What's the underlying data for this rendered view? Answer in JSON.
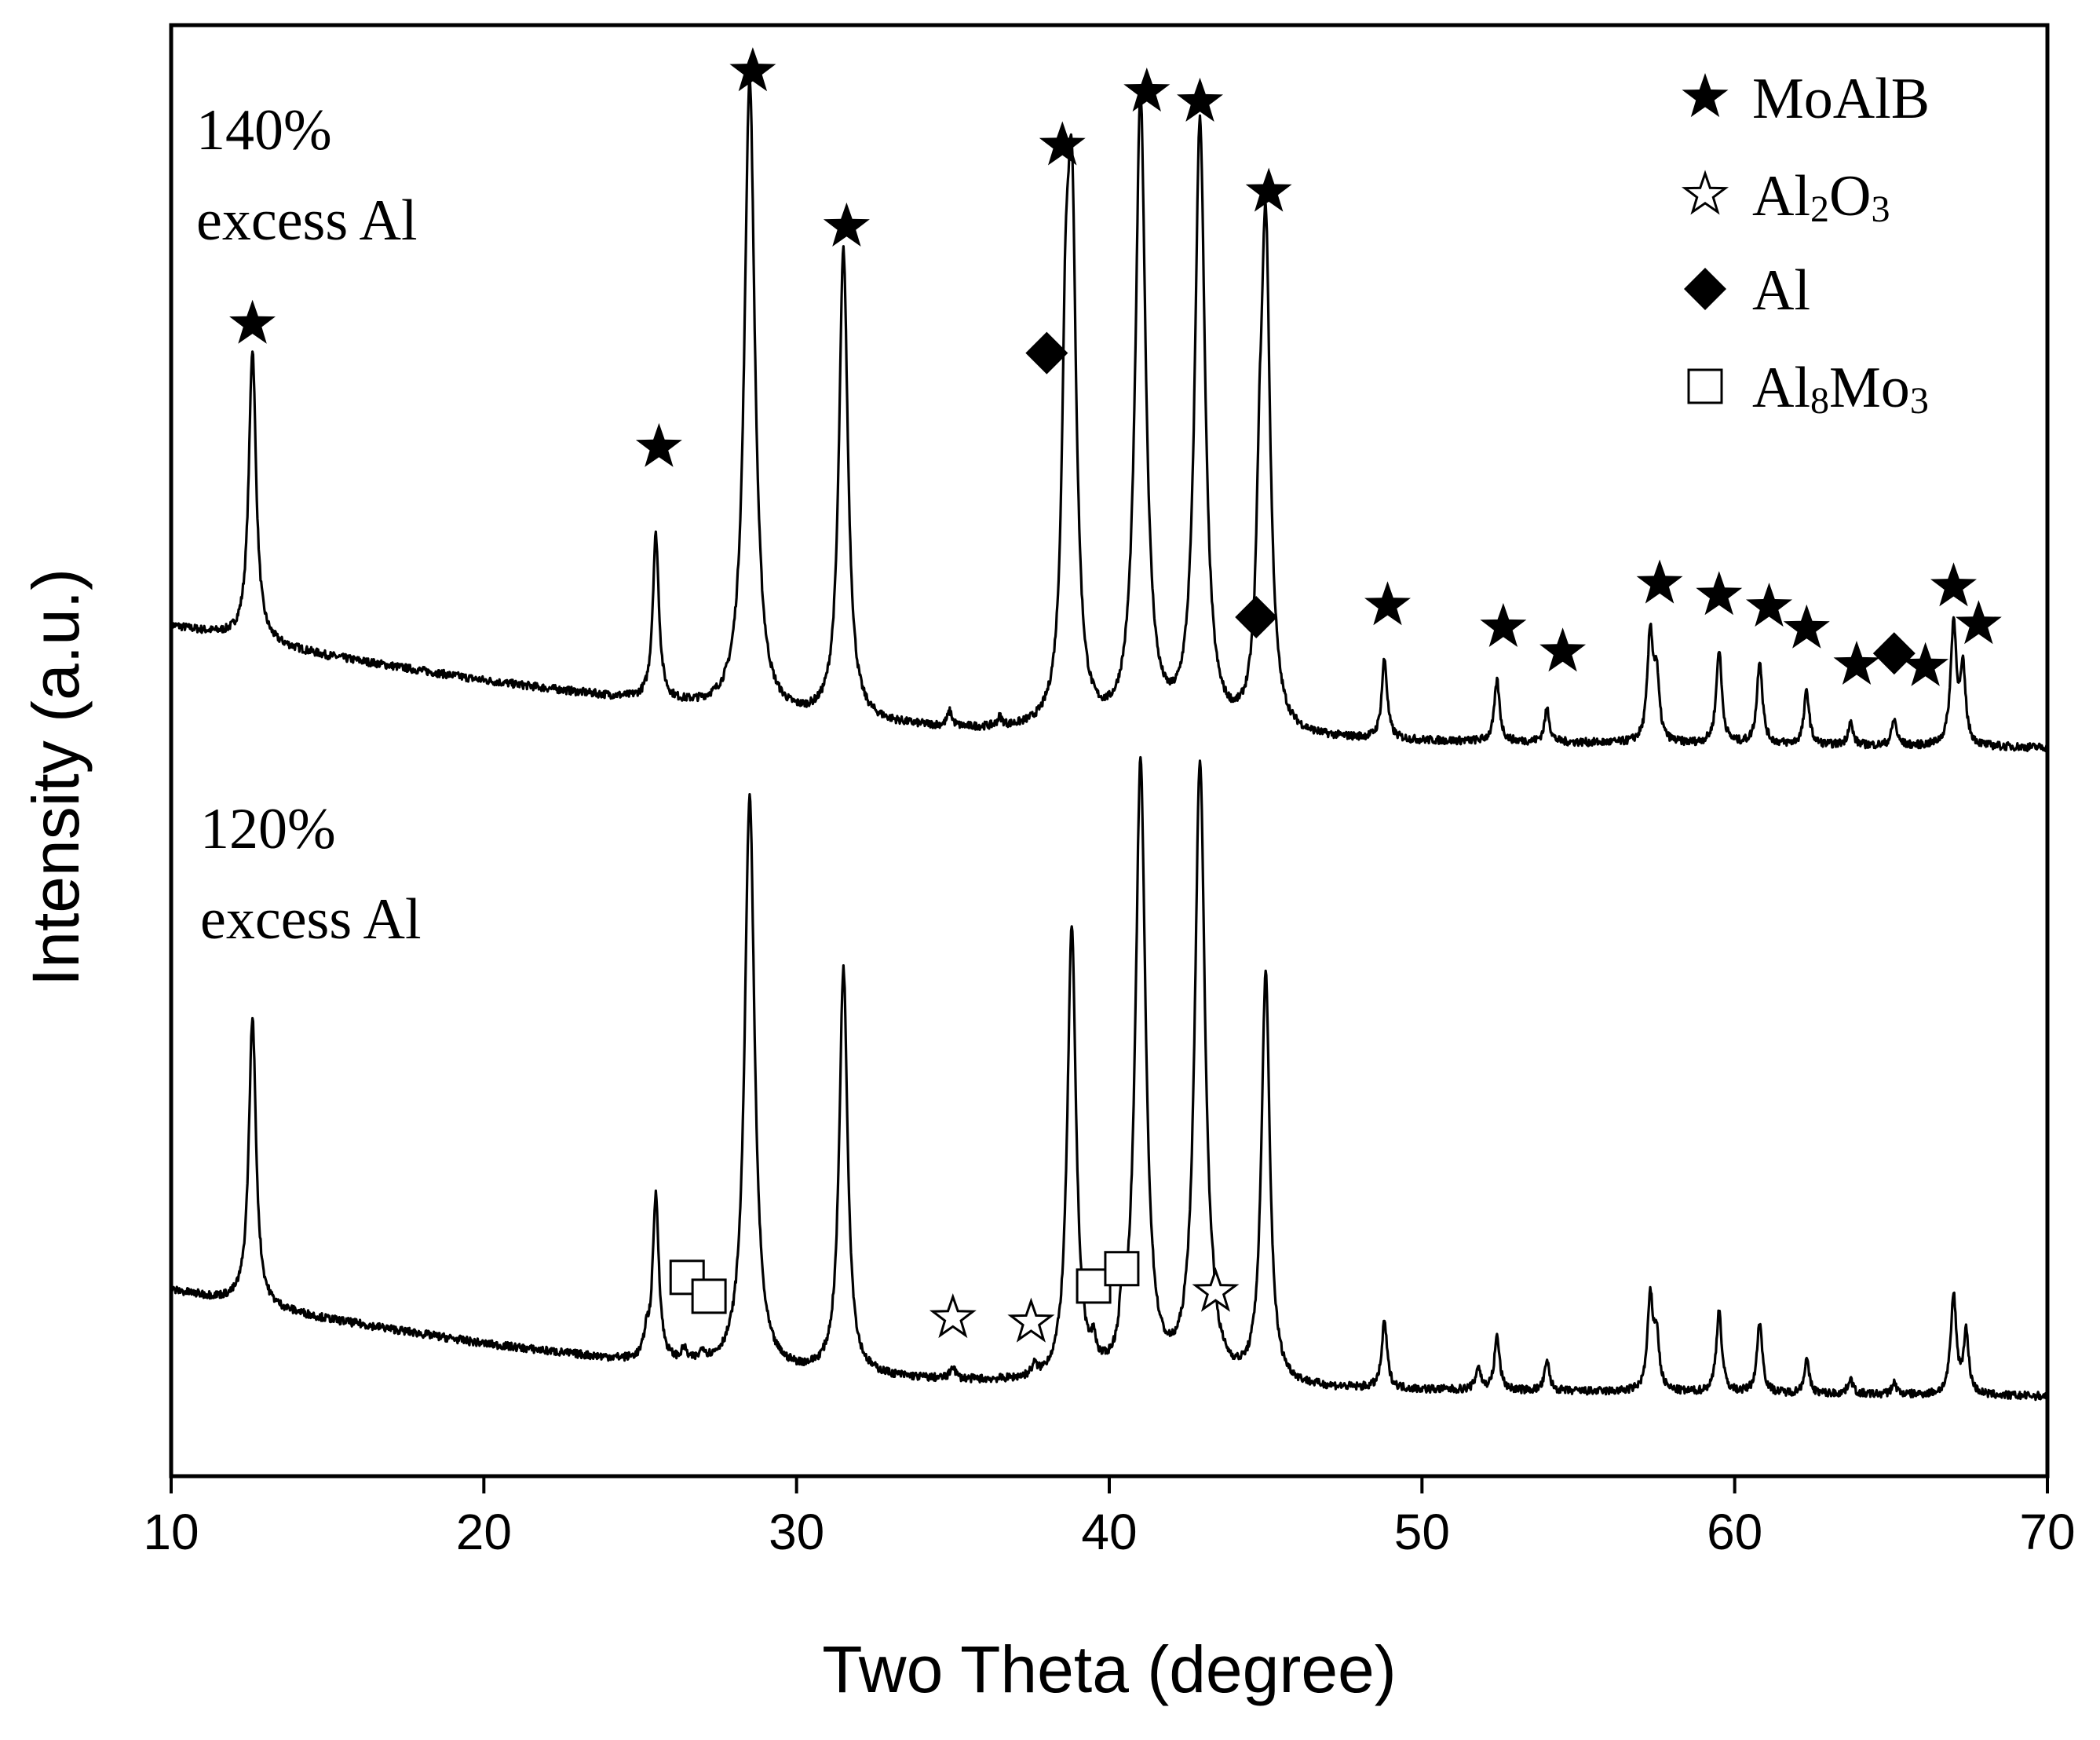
{
  "chart_data": {
    "type": "line",
    "title": "",
    "xlabel": "Two Theta (degree)",
    "ylabel": "Intensity (a.u.)",
    "xlim": [
      10,
      70
    ],
    "ylim": [
      0,
      100
    ],
    "x_ticks": [
      "10",
      "20",
      "30",
      "40",
      "50",
      "60",
      "70"
    ],
    "grid": false,
    "legend_position": "top-right",
    "legend": [
      {
        "symbol": "filled-star",
        "parts": [
          [
            "MoAlB",
            false
          ]
        ]
      },
      {
        "symbol": "open-star",
        "parts": [
          [
            "Al",
            false
          ],
          [
            "2",
            true
          ],
          [
            "O",
            false
          ],
          [
            "3",
            true
          ]
        ]
      },
      {
        "symbol": "filled-diamond",
        "parts": [
          [
            "Al",
            false
          ]
        ]
      },
      {
        "symbol": "open-square",
        "parts": [
          [
            "Al",
            false
          ],
          [
            "8",
            true
          ],
          [
            "Mo",
            false
          ],
          [
            "3",
            true
          ]
        ]
      }
    ],
    "series": [
      {
        "name": "140% excess Al",
        "label_lines": [
          "140%",
          "excess Al"
        ],
        "baseline": {
          "x": [
            10,
            12,
            15,
            20,
            25,
            30,
            35,
            40,
            45,
            50,
            55,
            60,
            65,
            70
          ],
          "y": [
            58.6,
            57.8,
            56.5,
            54.8,
            53.4,
            52.1,
            51.4,
            51.0,
            50.8,
            50.6,
            50.5,
            50.4,
            50.3,
            50.2
          ]
        },
        "peaks": [
          {
            "x": 12.6,
            "h": 20.1
          },
          {
            "x": 25.5,
            "h": 11.4
          },
          {
            "x": 28.5,
            "h": 43.8
          },
          {
            "x": 31.5,
            "h": 32.4
          },
          {
            "x": 38.6,
            "h": 19.0
          },
          {
            "x": 38.8,
            "h": 34.5
          },
          {
            "x": 41.0,
            "h": 43.5
          },
          {
            "x": 42.9,
            "h": 42.0
          },
          {
            "x": 44.8,
            "h": 8.5
          },
          {
            "x": 45.0,
            "h": 34.4
          },
          {
            "x": 48.8,
            "h": 5.5
          },
          {
            "x": 52.4,
            "h": 4.2
          },
          {
            "x": 54.0,
            "h": 2.3
          },
          {
            "x": 57.3,
            "h": 7.4
          },
          {
            "x": 57.5,
            "h": 4.2
          },
          {
            "x": 59.5,
            "h": 6.5
          },
          {
            "x": 60.8,
            "h": 5.8
          },
          {
            "x": 62.3,
            "h": 3.7
          },
          {
            "x": 63.7,
            "h": 1.6
          },
          {
            "x": 65.1,
            "h": 1.8
          },
          {
            "x": 67.0,
            "h": 8.4
          },
          {
            "x": 67.3,
            "h": 5.0
          },
          {
            "x": 34.9,
            "h": 1.0
          },
          {
            "x": 36.5,
            "h": 0.6
          }
        ],
        "markers": [
          {
            "x": 12.6,
            "y": 79.4,
            "symbol": "filled-star"
          },
          {
            "x": 25.6,
            "y": 70.9,
            "symbol": "filled-star"
          },
          {
            "x": 28.6,
            "y": 96.8,
            "symbol": "filled-star"
          },
          {
            "x": 31.6,
            "y": 86.1,
            "symbol": "filled-star"
          },
          {
            "x": 38.0,
            "y": 77.4,
            "symbol": "filled-diamond"
          },
          {
            "x": 38.5,
            "y": 91.7,
            "symbol": "filled-star"
          },
          {
            "x": 41.2,
            "y": 95.4,
            "symbol": "filled-star"
          },
          {
            "x": 42.9,
            "y": 94.7,
            "symbol": "filled-star"
          },
          {
            "x": 44.7,
            "y": 59.2,
            "symbol": "filled-diamond"
          },
          {
            "x": 45.1,
            "y": 88.5,
            "symbol": "filled-star"
          },
          {
            "x": 48.9,
            "y": 60.0,
            "symbol": "filled-star"
          },
          {
            "x": 52.6,
            "y": 58.5,
            "symbol": "filled-star"
          },
          {
            "x": 54.5,
            "y": 56.8,
            "symbol": "filled-star"
          },
          {
            "x": 57.6,
            "y": 61.5,
            "symbol": "filled-star"
          },
          {
            "x": 59.5,
            "y": 60.7,
            "symbol": "filled-star"
          },
          {
            "x": 61.1,
            "y": 59.9,
            "symbol": "filled-star"
          },
          {
            "x": 62.3,
            "y": 58.4,
            "symbol": "filled-star"
          },
          {
            "x": 63.9,
            "y": 55.9,
            "symbol": "filled-star"
          },
          {
            "x": 65.1,
            "y": 56.7,
            "symbol": "filled-diamond"
          },
          {
            "x": 66.1,
            "y": 55.8,
            "symbol": "filled-star"
          },
          {
            "x": 67.0,
            "y": 61.3,
            "symbol": "filled-star"
          },
          {
            "x": 67.8,
            "y": 58.7,
            "symbol": "filled-star"
          }
        ]
      },
      {
        "name": "120% excess Al",
        "label_lines": [
          "120%",
          "excess Al"
        ],
        "baseline": {
          "x": [
            10,
            12,
            15,
            20,
            25,
            30,
            35,
            40,
            45,
            50,
            55,
            60,
            65,
            70
          ],
          "y": [
            12.8,
            12.0,
            10.8,
            9.1,
            7.8,
            7.0,
            6.5,
            6.2,
            6.0,
            5.9,
            5.8,
            5.7,
            5.6,
            5.5
          ]
        },
        "peaks": [
          {
            "x": 12.6,
            "h": 19.8
          },
          {
            "x": 25.2,
            "h": 1.5
          },
          {
            "x": 25.5,
            "h": 11.4
          },
          {
            "x": 26.4,
            "h": 0.8
          },
          {
            "x": 27.0,
            "h": 0.7
          },
          {
            "x": 28.5,
            "h": 39.6
          },
          {
            "x": 31.5,
            "h": 28.0
          },
          {
            "x": 35.0,
            "h": 0.9
          },
          {
            "x": 37.6,
            "h": 0.7
          },
          {
            "x": 38.8,
            "h": 31.0
          },
          {
            "x": 39.5,
            "h": 1.5
          },
          {
            "x": 40.4,
            "h": 2.8
          },
          {
            "x": 41.0,
            "h": 42.4
          },
          {
            "x": 42.9,
            "h": 42.6
          },
          {
            "x": 43.3,
            "h": 1.0
          },
          {
            "x": 45.0,
            "h": 28.2
          },
          {
            "x": 48.8,
            "h": 4.6
          },
          {
            "x": 51.8,
            "h": 1.6
          },
          {
            "x": 52.4,
            "h": 3.7
          },
          {
            "x": 54.0,
            "h": 2.0
          },
          {
            "x": 57.3,
            "h": 6.3
          },
          {
            "x": 57.5,
            "h": 3.6
          },
          {
            "x": 59.5,
            "h": 5.7
          },
          {
            "x": 60.8,
            "h": 4.9
          },
          {
            "x": 62.3,
            "h": 2.3
          },
          {
            "x": 63.7,
            "h": 1.1
          },
          {
            "x": 65.1,
            "h": 0.8
          },
          {
            "x": 67.0,
            "h": 6.8
          },
          {
            "x": 67.4,
            "h": 4.2
          }
        ],
        "markers": [
          {
            "x": 26.5,
            "y": 13.7,
            "symbol": "open-square"
          },
          {
            "x": 27.2,
            "y": 12.4,
            "symbol": "open-square"
          },
          {
            "x": 35.0,
            "y": 10.9,
            "symbol": "open-star"
          },
          {
            "x": 37.5,
            "y": 10.6,
            "symbol": "open-star"
          },
          {
            "x": 39.5,
            "y": 13.1,
            "symbol": "open-square"
          },
          {
            "x": 40.4,
            "y": 14.3,
            "symbol": "open-square"
          },
          {
            "x": 43.4,
            "y": 12.7,
            "symbol": "open-star"
          }
        ]
      }
    ]
  }
}
